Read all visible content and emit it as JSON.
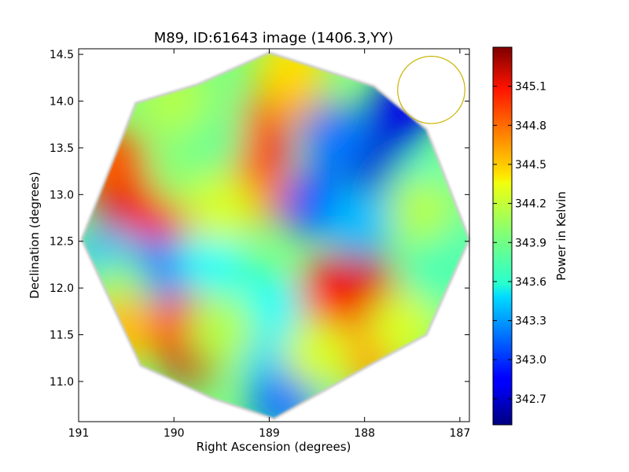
{
  "chart_data": {
    "type": "heatmap",
    "title": "M89, ID:61643 image (1406.3,YY)",
    "xlabel": "Right Ascension (degrees)",
    "ylabel": "Declination (degrees)",
    "xlim": [
      191.0,
      186.9
    ],
    "ylim": [
      10.57,
      14.56
    ],
    "x_ticks": [
      {
        "value": 191,
        "label": "191"
      },
      {
        "value": 190,
        "label": "190"
      },
      {
        "value": 189,
        "label": "189"
      },
      {
        "value": 188,
        "label": "188"
      },
      {
        "value": 187,
        "label": "187"
      }
    ],
    "y_ticks": [
      {
        "value": 11.0,
        "label": "11.0"
      },
      {
        "value": 11.5,
        "label": "11.5"
      },
      {
        "value": 12.0,
        "label": "12.0"
      },
      {
        "value": 12.5,
        "label": "12.5"
      },
      {
        "value": 13.0,
        "label": "13.0"
      },
      {
        "value": 13.5,
        "label": "13.5"
      },
      {
        "value": 14.0,
        "label": "14.0"
      },
      {
        "value": 14.5,
        "label": "14.5"
      }
    ],
    "colorbar": {
      "label": "Power in Kelvin",
      "range": [
        342.5,
        345.4
      ],
      "colormap": "jet",
      "ticks": [
        {
          "value": 342.7,
          "label": "342.7"
        },
        {
          "value": 343.0,
          "label": "343.0"
        },
        {
          "value": 343.3,
          "label": "343.3"
        },
        {
          "value": 343.6,
          "label": "343.6"
        },
        {
          "value": 343.9,
          "label": "343.9"
        },
        {
          "value": 344.2,
          "label": "344.2"
        },
        {
          "value": 344.5,
          "label": "344.5"
        },
        {
          "value": 344.8,
          "label": "344.8"
        },
        {
          "value": 345.1,
          "label": "345.1"
        }
      ]
    },
    "footprint_outline": [
      [
        189.0,
        14.52
      ],
      [
        187.9,
        14.16
      ],
      [
        187.35,
        13.7
      ],
      [
        186.9,
        12.52
      ],
      [
        187.35,
        11.5
      ],
      [
        187.95,
        11.17
      ],
      [
        188.95,
        10.6
      ],
      [
        189.6,
        10.82
      ],
      [
        190.35,
        11.17
      ],
      [
        190.97,
        12.52
      ],
      [
        190.4,
        13.98
      ],
      [
        189.75,
        14.18
      ]
    ],
    "regions": [
      {
        "ra": 190.5,
        "dec": 12.85,
        "value": 345.2
      },
      {
        "ra": 190.65,
        "dec": 13.35,
        "value": 344.8
      },
      {
        "ra": 190.2,
        "dec": 12.7,
        "value": 345.0
      },
      {
        "ra": 189.8,
        "dec": 11.35,
        "value": 345.2
      },
      {
        "ra": 190.05,
        "dec": 11.7,
        "value": 344.9
      },
      {
        "ra": 188.1,
        "dec": 12.1,
        "value": 345.3
      },
      {
        "ra": 188.4,
        "dec": 11.9,
        "value": 345.0
      },
      {
        "ra": 187.85,
        "dec": 11.85,
        "value": 345.1
      },
      {
        "ra": 187.95,
        "dec": 11.3,
        "value": 344.6
      },
      {
        "ra": 189.1,
        "dec": 13.05,
        "value": 344.7
      },
      {
        "ra": 189.15,
        "dec": 13.55,
        "value": 345.0
      },
      {
        "ra": 188.8,
        "dec": 14.1,
        "value": 344.6
      },
      {
        "ra": 188.75,
        "dec": 14.4,
        "value": 344.4
      },
      {
        "ra": 187.6,
        "dec": 13.9,
        "value": 342.8
      },
      {
        "ra": 187.85,
        "dec": 13.35,
        "value": 342.7
      },
      {
        "ra": 188.3,
        "dec": 13.6,
        "value": 343.2
      },
      {
        "ra": 188.5,
        "dec": 12.9,
        "value": 343.1
      },
      {
        "ra": 188.05,
        "dec": 12.7,
        "value": 343.4
      },
      {
        "ra": 187.4,
        "dec": 13.05,
        "value": 343.7
      },
      {
        "ra": 190.2,
        "dec": 12.2,
        "value": 343.2
      },
      {
        "ra": 190.7,
        "dec": 12.3,
        "value": 343.4
      },
      {
        "ra": 189.6,
        "dec": 12.3,
        "value": 343.6
      },
      {
        "ra": 189.0,
        "dec": 11.8,
        "value": 343.6
      },
      {
        "ra": 188.9,
        "dec": 11.2,
        "value": 343.5
      },
      {
        "ra": 188.85,
        "dec": 10.8,
        "value": 343.2
      },
      {
        "ra": 189.85,
        "dec": 13.2,
        "value": 344.0
      },
      {
        "ra": 189.6,
        "dec": 13.6,
        "value": 343.9
      },
      {
        "ra": 189.5,
        "dec": 12.85,
        "value": 344.2
      },
      {
        "ra": 190.0,
        "dec": 14.0,
        "value": 344.1
      },
      {
        "ra": 187.1,
        "dec": 12.5,
        "value": 343.8
      },
      {
        "ra": 187.3,
        "dec": 12.1,
        "value": 343.8
      },
      {
        "ra": 187.4,
        "dec": 12.85,
        "value": 344.1
      },
      {
        "ra": 187.6,
        "dec": 11.6,
        "value": 344.2
      },
      {
        "ra": 190.6,
        "dec": 11.95,
        "value": 344.0
      },
      {
        "ra": 190.55,
        "dec": 11.55,
        "value": 344.5
      },
      {
        "ra": 189.5,
        "dec": 11.55,
        "value": 344.1
      },
      {
        "ra": 188.5,
        "dec": 11.3,
        "value": 344.2
      }
    ],
    "beam_circle": {
      "ra": 187.3,
      "dec": 14.12,
      "radius_deg": 0.36,
      "color": "#c8b400"
    },
    "grid": false,
    "legend": "colorbar-right"
  }
}
